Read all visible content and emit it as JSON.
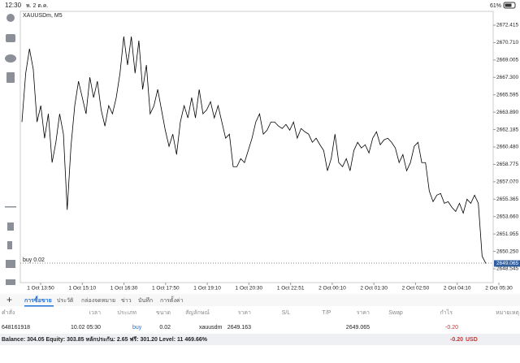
{
  "status": {
    "time": "12:30",
    "date": "พ. 2 ต.ค.",
    "battery": "61%"
  },
  "chart": {
    "type": "line",
    "symbol": "XAUUSDm, M5",
    "order_label": "buy 0.02",
    "current_price": {
      "value": 2649.065,
      "label": "2649.065"
    },
    "ylim": [
      2647.19,
      2673.77
    ],
    "yticks": [
      {
        "value": 2672.415,
        "label": "2672.415"
      },
      {
        "value": 2670.71,
        "label": "2670.710"
      },
      {
        "value": 2669.005,
        "label": "2669.005"
      },
      {
        "value": 2667.3,
        "label": "2667.300"
      },
      {
        "value": 2665.595,
        "label": "2665.595"
      },
      {
        "value": 2663.89,
        "label": "2663.890"
      },
      {
        "value": 2662.185,
        "label": "2662.185"
      },
      {
        "value": 2660.48,
        "label": "2660.480"
      },
      {
        "value": 2658.775,
        "label": "2658.775"
      },
      {
        "value": 2657.07,
        "label": "2657.070"
      },
      {
        "value": 2655.365,
        "label": "2655.365"
      },
      {
        "value": 2653.66,
        "label": "2653.660"
      },
      {
        "value": 2651.955,
        "label": "2651.955"
      },
      {
        "value": 2650.25,
        "label": "2650.250"
      },
      {
        "value": 2648.545,
        "label": "2648.545"
      }
    ],
    "xlabels": [
      "1 Oct 13:50",
      "1 Oct 15:10",
      "1 Oct 16:30",
      "1 Oct 17:50",
      "1 Oct 19:10",
      "1 Oct 20:30",
      "1 Oct 22:51",
      "2 Oct 00:10",
      "2 Oct 01:30",
      "2 Oct 02:50",
      "2 Oct 04:10",
      "2 Oct 05:30"
    ],
    "color": "#000000",
    "values": [
      2662.93,
      2667.71,
      2670.1,
      2668.11,
      2662.93,
      2664.53,
      2661.34,
      2663.73,
      2658.95,
      2660.94,
      2663.73,
      2661.74,
      2654.32,
      2660.54,
      2664.53,
      2666.92,
      2665.32,
      2663.73,
      2667.31,
      2665.32,
      2666.92,
      2664.13,
      2662.53,
      2664.53,
      2663.73,
      2665.32,
      2667.71,
      2671.3,
      2668.51,
      2671.3,
      2667.71,
      2670.9,
      2666.12,
      2668.51,
      2663.73,
      2664.53,
      2666.12,
      2664.13,
      2662.13,
      2660.54,
      2661.74,
      2659.74,
      2662.93,
      2664.53,
      2663.33,
      2665.32,
      2663.33,
      2666.12,
      2663.73,
      2664.13,
      2664.92,
      2663.33,
      2664.53,
      2662.93,
      2661.34,
      2661.74,
      2658.55,
      2658.55,
      2659.34,
      2658.95,
      2660.14,
      2661.34,
      2662.93,
      2663.73,
      2661.74,
      2662.13,
      2662.93,
      2662.93,
      2662.53,
      2662.29,
      2662.69,
      2662.13,
      2662.93,
      2661.34,
      2662.29,
      2661.97,
      2661.74,
      2660.94,
      2661.34,
      2660.7,
      2660.14,
      2658.15,
      2659.34,
      2661.74,
      2658.95,
      2658.55,
      2659.34,
      2658.15,
      2660.14,
      2660.94,
      2660.38,
      2660.7,
      2659.9,
      2661.34,
      2661.97,
      2660.7,
      2661.18,
      2661.34,
      2660.94,
      2660.38,
      2658.95,
      2659.74,
      2658.15,
      2658.95,
      2660.54,
      2660.94,
      2658.95,
      2658.95,
      2656.16,
      2655.12,
      2655.76,
      2655.92,
      2654.96,
      2655.12,
      2654.56,
      2654.16,
      2654.96,
      2654.0,
      2655.36,
      2654.96,
      2655.76,
      2654.96,
      2649.78,
      2649.065
    ]
  },
  "tabs": [
    "การซื้อขาย",
    "ประวัติ",
    "กล่องจดหมาย",
    "ข่าว",
    "บันทึก",
    "การตั้งค่า"
  ],
  "table": {
    "headers": [
      "คำสั่ง",
      "เวลา",
      "ประเภท",
      "ขนาด",
      "สัญลักษณ์",
      "ราคา",
      "S/L",
      "T/P",
      "ราคา",
      "Swap",
      "กำไร",
      "หมายเหตุ"
    ],
    "row": [
      "648161918",
      "10.02 05:30",
      "buy",
      "0.02",
      "xauusdm",
      "2649.163",
      "",
      "",
      "2649.065",
      "",
      "-0.20",
      ""
    ]
  },
  "footer": {
    "summary": "Balance: 304.05 Equity: 303.85 หลักประกัน: 2.65 ฟรี: 301.20 Level: 11 469.66%",
    "profit": "-0.20",
    "currency": "USD"
  }
}
